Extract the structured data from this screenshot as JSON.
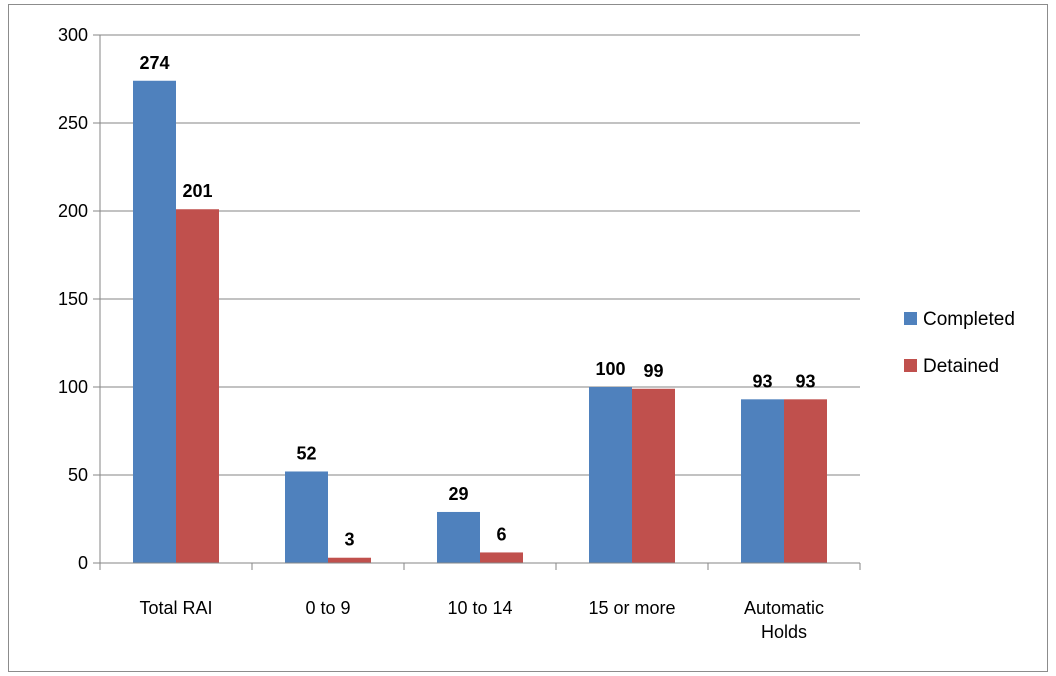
{
  "chart_data": {
    "type": "bar",
    "title": "",
    "xlabel": "",
    "ylabel": "",
    "categories": [
      "Total RAI",
      "0 to 9",
      "10 to 14",
      "15 or more",
      "Automatic Holds"
    ],
    "series": [
      {
        "name": "Completed",
        "color": "#4f81bd",
        "values": [
          274,
          52,
          29,
          100,
          93
        ]
      },
      {
        "name": "Detained",
        "color": "#c0504d",
        "values": [
          201,
          3,
          6,
          99,
          93
        ]
      }
    ],
    "ylim": [
      0,
      300
    ],
    "yticks": [
      0,
      50,
      100,
      150,
      200,
      250,
      300
    ],
    "grid": true,
    "legend_position": "right",
    "data_labels": true
  }
}
